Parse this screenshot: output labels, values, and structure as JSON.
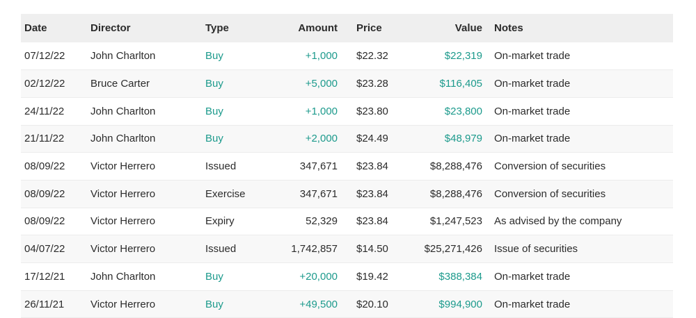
{
  "table": {
    "header": [
      "Date",
      "Director",
      "Type",
      "Amount",
      "Price",
      "Value",
      "Notes"
    ],
    "rows": [
      [
        "07/12/22",
        "John Charlton",
        "Buy",
        "+1,000",
        "$22.32",
        "$22,319",
        "On-market trade"
      ],
      [
        "02/12/22",
        "Bruce Carter",
        "Buy",
        "+5,000",
        "$23.28",
        "$116,405",
        "On-market trade"
      ],
      [
        "24/11/22",
        "John Charlton",
        "Buy",
        "+1,000",
        "$23.80",
        "$23,800",
        "On-market trade"
      ],
      [
        "21/11/22",
        "John Charlton",
        "Buy",
        "+2,000",
        "$24.49",
        "$48,979",
        "On-market trade"
      ],
      [
        "08/09/22",
        "Victor Herrero",
        "Issued",
        "347,671",
        "$23.84",
        "$8,288,476",
        "Conversion of securities"
      ],
      [
        "08/09/22",
        "Victor Herrero",
        "Exercise",
        "347,671",
        "$23.84",
        "$8,288,476",
        "Conversion of securities"
      ],
      [
        "08/09/22",
        "Victor Herrero",
        "Expiry",
        "52,329",
        "$23.84",
        "$1,247,523",
        "As advised by the company"
      ],
      [
        "04/07/22",
        "Victor Herrero",
        "Issued",
        "1,742,857",
        "$14.50",
        "$25,271,426",
        "Issue of securities"
      ],
      [
        "17/12/21",
        "John Charlton",
        "Buy",
        "+20,000",
        "$19.42",
        "$388,384",
        "On-market trade"
      ],
      [
        "26/11/21",
        "Victor Herrero",
        "Buy",
        "+49,500",
        "$20.10",
        "$994,900",
        "On-market trade"
      ]
    ]
  }
}
